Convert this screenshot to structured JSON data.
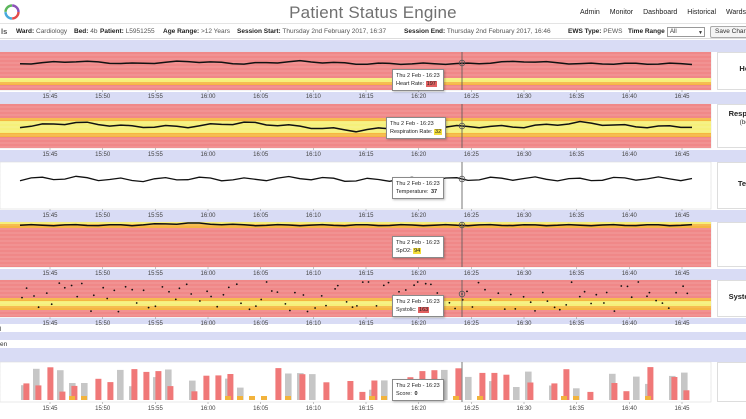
{
  "app": {
    "title": "Patient Status Engine",
    "page_heading_fragment": "ls",
    "nav": [
      "Admin",
      "Monitor",
      "Dashboard",
      "Historical",
      "Wards"
    ]
  },
  "session": {
    "ward_label": "Ward:",
    "ward": "Cardiology",
    "bed_label": "Bed:",
    "bed": "4b",
    "patient_label": "Patient:",
    "patient": "L5951255",
    "age_label": "Age Range:",
    "age": ">12 Years",
    "start_label": "Session Start:",
    "start": "Thursday 2nd February 2017, 16:37",
    "end_label": "Session End:",
    "end": "Thursday 2nd February 2017, 16:46",
    "ews_label": "EWS Type:",
    "ews": "PEWS",
    "time_range_label": "Time Range",
    "time_range": "All",
    "save_label": "Save Char"
  },
  "time_ticks": [
    "15:45",
    "15:50",
    "15:55",
    "16:00",
    "16:05",
    "16:10",
    "16:15",
    "16:20",
    "16:25",
    "16:30",
    "16:35",
    "16:40",
    "16:45"
  ],
  "colors": {
    "red_band": "#f08888",
    "orange_band": "#f5b642",
    "yellow_band": "#f6f07a",
    "gap_band": "#d9dcf5",
    "bar_red": "#f07878",
    "bar_gray": "#c6c6c6",
    "bar_orange": "#f2b33c",
    "line": "#111111"
  },
  "panels": [
    {
      "side_label": "He",
      "side_sub": "",
      "tooltip_time": "Thu 2 Feb - 16:23",
      "tooltip_label": "Heart Rate:",
      "tooltip_value": "197",
      "value_status": "red"
    },
    {
      "side_label": "Respi",
      "side_sub": "(be",
      "tooltip_time": "Thu 2 Feb - 16:23",
      "tooltip_label": "Respiration Rate:",
      "tooltip_value": "32",
      "value_status": "yellow"
    },
    {
      "side_label": "Ter",
      "side_sub": "",
      "tooltip_time": "Thu 2 Feb - 16:23",
      "tooltip_label": "Temperature:",
      "tooltip_value": "37",
      "value_status": "none"
    },
    {
      "side_label": "",
      "side_sub": "",
      "tooltip_time": "Thu 2 Feb - 16:23",
      "tooltip_label": "SpO2:",
      "tooltip_value": "94",
      "value_status": "yellow"
    },
    {
      "side_label": "Systo",
      "side_sub": "",
      "tooltip_time": "Thu 2 Feb - 16:23",
      "tooltip_label": "Systolic:",
      "tooltip_value": "163",
      "value_status": "red"
    },
    {
      "side_label": "",
      "side_sub": "",
      "tooltip_time": "Thu 2 Feb - 16:23",
      "tooltip_label": "Score:",
      "tooltip_value": "0",
      "value_status": "none"
    }
  ],
  "section_labels": [
    "l",
    "en"
  ],
  "chart_data": [
    {
      "type": "line",
      "title": "Heart Rate",
      "x": [
        "15:45",
        "15:50",
        "15:55",
        "16:00",
        "16:05",
        "16:10",
        "16:15",
        "16:20",
        "16:25",
        "16:30",
        "16:35",
        "16:40",
        "16:45"
      ],
      "series": [
        {
          "values": [
            197,
            198,
            197,
            198,
            197,
            198,
            197,
            197,
            197,
            198,
            197,
            197,
            197
          ]
        }
      ]
    },
    {
      "type": "line",
      "title": "Respiration Rate",
      "x": [
        "15:45",
        "15:50",
        "15:55",
        "16:00",
        "16:05",
        "16:10",
        "16:15",
        "16:20",
        "16:25",
        "16:30",
        "16:35",
        "16:40",
        "16:45"
      ],
      "series": [
        {
          "values": [
            32,
            33,
            32,
            32,
            33,
            32,
            31,
            32,
            32,
            32,
            33,
            32,
            32
          ]
        }
      ]
    },
    {
      "type": "line",
      "title": "Temperature",
      "x": [
        "15:45",
        "15:50",
        "15:55",
        "16:00",
        "16:05",
        "16:10",
        "16:15",
        "16:20",
        "16:25",
        "16:30",
        "16:35",
        "16:40",
        "16:45"
      ],
      "series": [
        {
          "values": [
            37,
            37.2,
            36.8,
            37.1,
            36.9,
            37.2,
            36.8,
            37,
            37,
            37.1,
            36.9,
            37.1,
            37
          ]
        }
      ]
    },
    {
      "type": "line",
      "title": "SpO2",
      "x": [
        "15:45",
        "15:50",
        "15:55",
        "16:00",
        "16:05",
        "16:10",
        "16:15",
        "16:20",
        "16:25",
        "16:30",
        "16:35",
        "16:40",
        "16:45"
      ],
      "series": [
        {
          "values": [
            94,
            94,
            94,
            95,
            94,
            94,
            94,
            94,
            94,
            94,
            94,
            94,
            94
          ]
        }
      ]
    },
    {
      "type": "scatter",
      "title": "Systolic",
      "x": [
        "15:45",
        "15:50",
        "15:55",
        "16:00",
        "16:05",
        "16:10",
        "16:15",
        "16:20",
        "16:25",
        "16:30",
        "16:35",
        "16:40",
        "16:45"
      ],
      "series": [
        {
          "values": [
            160,
            172,
            150,
            168,
            155,
            170,
            162,
            163,
            158,
            171,
            152,
            166,
            161
          ]
        }
      ]
    },
    {
      "type": "bar",
      "title": "Score",
      "x": [
        "15:45",
        "15:50",
        "15:55",
        "16:00",
        "16:05",
        "16:10",
        "16:15",
        "16:20",
        "16:25",
        "16:30",
        "16:35",
        "16:40",
        "16:45"
      ],
      "series": [
        {
          "values": [
            0,
            0,
            0,
            0,
            0,
            0,
            0,
            0,
            0,
            0,
            0,
            0,
            0
          ]
        }
      ]
    }
  ]
}
